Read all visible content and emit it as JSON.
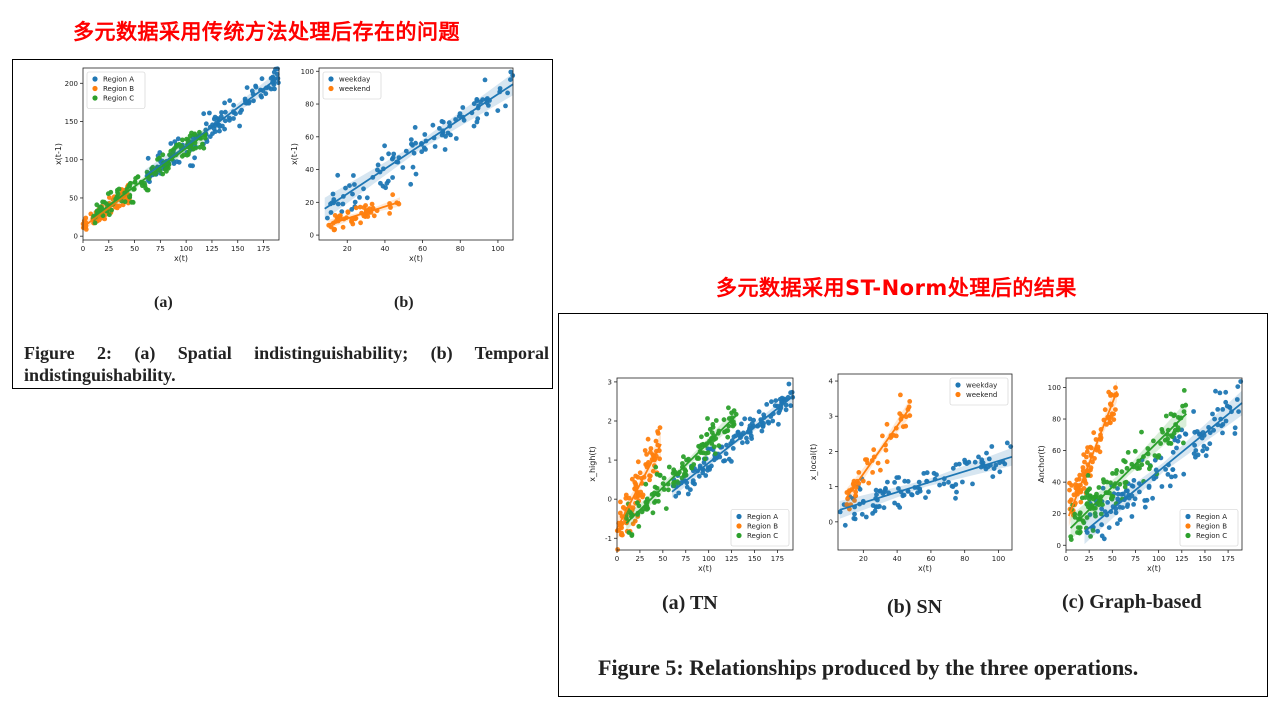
{
  "headings": {
    "top": "多元数据采用传统方法处理后存在的问题",
    "right": "多元数据采用ST-Norm处理后的结果"
  },
  "figure2": {
    "labels": [
      "(a)",
      "(b)"
    ],
    "caption": "Figure 2: (a) Spatial indistinguishability; (b) Temporal indistinguishability."
  },
  "figure5": {
    "labels": [
      "(a) TN",
      "(b) SN",
      "(c) Graph-based"
    ],
    "caption": "Figure 5: Relationships produced by the three operations."
  },
  "colors": {
    "blue": "#1f77b4",
    "orange": "#ff7f0e",
    "green": "#2ca02c"
  },
  "chart_data": [
    {
      "type": "scatter",
      "id": "fig2a",
      "xlabel": "x(t)",
      "ylabel": "x(t-1)",
      "xlim": [
        0,
        190
      ],
      "ylim": [
        -5,
        220
      ],
      "xticks": [
        0,
        25,
        50,
        75,
        100,
        125,
        150,
        175
      ],
      "yticks": [
        0,
        50,
        100,
        150,
        200
      ],
      "legend_position": "top-left",
      "series": [
        {
          "name": "Region A",
          "color": "#1f77b4",
          "n": 130,
          "x_range": [
            60,
            190
          ],
          "fit": {
            "slope": 1.0,
            "intercept": 18
          },
          "noise": 16
        },
        {
          "name": "Region B",
          "color": "#ff7f0e",
          "n": 90,
          "x_range": [
            0,
            45
          ],
          "fit": {
            "slope": 1.0,
            "intercept": 12
          },
          "noise": 10
        },
        {
          "name": "Region C",
          "color": "#2ca02c",
          "n": 130,
          "x_range": [
            10,
            120
          ],
          "fit": {
            "slope": 1.0,
            "intercept": 15
          },
          "noise": 14
        }
      ]
    },
    {
      "type": "scatter",
      "id": "fig2b",
      "xlabel": "x(t)",
      "ylabel": "x(t-1)",
      "xlim": [
        5,
        108
      ],
      "ylim": [
        -3,
        102
      ],
      "xticks": [
        20,
        40,
        60,
        80,
        100
      ],
      "yticks": [
        0,
        20,
        40,
        60,
        80,
        100
      ],
      "legend_position": "top-left",
      "series": [
        {
          "name": "weekday",
          "color": "#1f77b4",
          "n": 110,
          "x_range": [
            8,
            108
          ],
          "fit": {
            "slope": 0.76,
            "intercept": 10
          },
          "noise": 12
        },
        {
          "name": "weekend",
          "color": "#ff7f0e",
          "n": 50,
          "x_range": [
            10,
            48
          ],
          "fit": {
            "slope": 0.36,
            "intercept": 3
          },
          "noise": 5
        }
      ]
    },
    {
      "type": "scatter",
      "id": "fig5a",
      "xlabel": "x(t)",
      "ylabel": "x_high(t)",
      "xlim": [
        0,
        192
      ],
      "ylim": [
        -1.3,
        3.1
      ],
      "xticks": [
        0,
        25,
        50,
        75,
        100,
        125,
        150,
        175
      ],
      "yticks": [
        -1,
        0,
        1,
        2,
        3
      ],
      "legend_position": "bottom-right",
      "series": [
        {
          "name": "Region A",
          "color": "#1f77b4",
          "n": 130,
          "x_range": [
            60,
            192
          ],
          "fit": {
            "slope": 0.0185,
            "intercept": -0.92
          },
          "noise": 0.28
        },
        {
          "name": "Region B",
          "color": "#ff7f0e",
          "n": 90,
          "x_range": [
            0,
            48
          ],
          "fit": {
            "slope": 0.045,
            "intercept": -0.75
          },
          "noise": 0.55
        },
        {
          "name": "Region C",
          "color": "#2ca02c",
          "n": 130,
          "x_range": [
            10,
            130
          ],
          "fit": {
            "slope": 0.023,
            "intercept": -0.85
          },
          "noise": 0.35
        }
      ]
    },
    {
      "type": "scatter",
      "id": "fig5b",
      "xlabel": "x(t)",
      "ylabel": "x_local(t)",
      "xlim": [
        5,
        108
      ],
      "ylim": [
        -0.8,
        4.2
      ],
      "xticks": [
        20,
        40,
        60,
        80,
        100
      ],
      "yticks": [
        0,
        1,
        2,
        3,
        4
      ],
      "legend_position": "top-right",
      "series": [
        {
          "name": "weekday",
          "color": "#1f77b4",
          "n": 110,
          "x_range": [
            6,
            108
          ],
          "fit": {
            "slope": 0.0148,
            "intercept": 0.25
          },
          "noise": 0.45
        },
        {
          "name": "weekend",
          "color": "#ff7f0e",
          "n": 50,
          "x_range": [
            10,
            48
          ],
          "fit": {
            "slope": 0.068,
            "intercept": 0.0
          },
          "noise": 0.45
        }
      ]
    },
    {
      "type": "scatter",
      "id": "fig5c",
      "xlabel": "x(t)",
      "ylabel": "Anchor(t)",
      "xlim": [
        0,
        190
      ],
      "ylim": [
        -3,
        106
      ],
      "xticks": [
        0,
        25,
        50,
        75,
        100,
        125,
        150,
        175
      ],
      "yticks": [
        0,
        20,
        40,
        60,
        80,
        100
      ],
      "legend_position": "bottom-right",
      "series": [
        {
          "name": "Region A",
          "color": "#1f77b4",
          "n": 130,
          "x_range": [
            20,
            190
          ],
          "fit": {
            "slope": 0.48,
            "intercept": -1
          },
          "noise": 14
        },
        {
          "name": "Region B",
          "color": "#ff7f0e",
          "n": 90,
          "x_range": [
            3,
            55
          ],
          "fit": {
            "slope": 1.52,
            "intercept": 14
          },
          "noise": 12
        },
        {
          "name": "Region C",
          "color": "#2ca02c",
          "n": 130,
          "x_range": [
            5,
            130
          ],
          "fit": {
            "slope": 0.58,
            "intercept": 8
          },
          "noise": 14
        }
      ]
    }
  ]
}
